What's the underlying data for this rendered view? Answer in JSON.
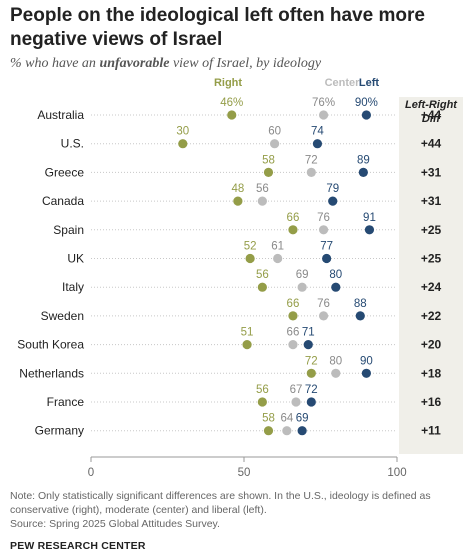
{
  "title": "People on the ideological left often have more negative views of Israel",
  "subtitle": {
    "prefix": "% who have an ",
    "emphasis": "unfavorable",
    "suffix": " view of Israel, by ideology"
  },
  "note_line1": "Note: Only statistically significant differences are shown. In the U.S., ideology is defined as conservative (right), moderate (center) and liberal (left).",
  "note_line2": "Source: Spring 2025 Global Attitudes Survey.",
  "source_org": "PEW RESEARCH CENTER",
  "colors": {
    "right": "#949d48",
    "center": "#bcbcbc",
    "left": "#264a73",
    "diff_bg": "#f0efe9"
  },
  "chart_data": {
    "type": "scatter",
    "xlim": [
      0,
      100
    ],
    "x_ticks": [
      "0",
      "50",
      "100"
    ],
    "diff_header": "Left-Right Diff",
    "categories": [
      "Australia",
      "U.S.",
      "Greece",
      "Canada",
      "Spain",
      "UK",
      "Italy",
      "Sweden",
      "South Korea",
      "Netherlands",
      "France",
      "Germany"
    ],
    "series": [
      {
        "name": "Right",
        "key": "right",
        "values": [
          46,
          30,
          58,
          48,
          66,
          52,
          56,
          66,
          51,
          72,
          56,
          58
        ],
        "labels": [
          "46%",
          "30",
          "58",
          "48",
          "66",
          "52",
          "56",
          "66",
          "51",
          "72",
          "56",
          "58"
        ]
      },
      {
        "name": "Center",
        "key": "center",
        "values": [
          76,
          60,
          72,
          56,
          76,
          61,
          69,
          76,
          66,
          80,
          67,
          64
        ],
        "labels": [
          "76%",
          "60",
          "72",
          "56",
          "76",
          "61",
          "69",
          "76",
          "66",
          "80",
          "67",
          "64"
        ]
      },
      {
        "name": "Left",
        "key": "left",
        "values": [
          90,
          74,
          89,
          79,
          91,
          77,
          80,
          88,
          71,
          90,
          72,
          69
        ],
        "labels": [
          "90%",
          "74",
          "89",
          "79",
          "91",
          "77",
          "80",
          "88",
          "71",
          "90",
          "72",
          "69"
        ]
      }
    ],
    "diff": [
      "+44",
      "+44",
      "+31",
      "+31",
      "+25",
      "+25",
      "+24",
      "+22",
      "+20",
      "+18",
      "+16",
      "+11"
    ]
  }
}
